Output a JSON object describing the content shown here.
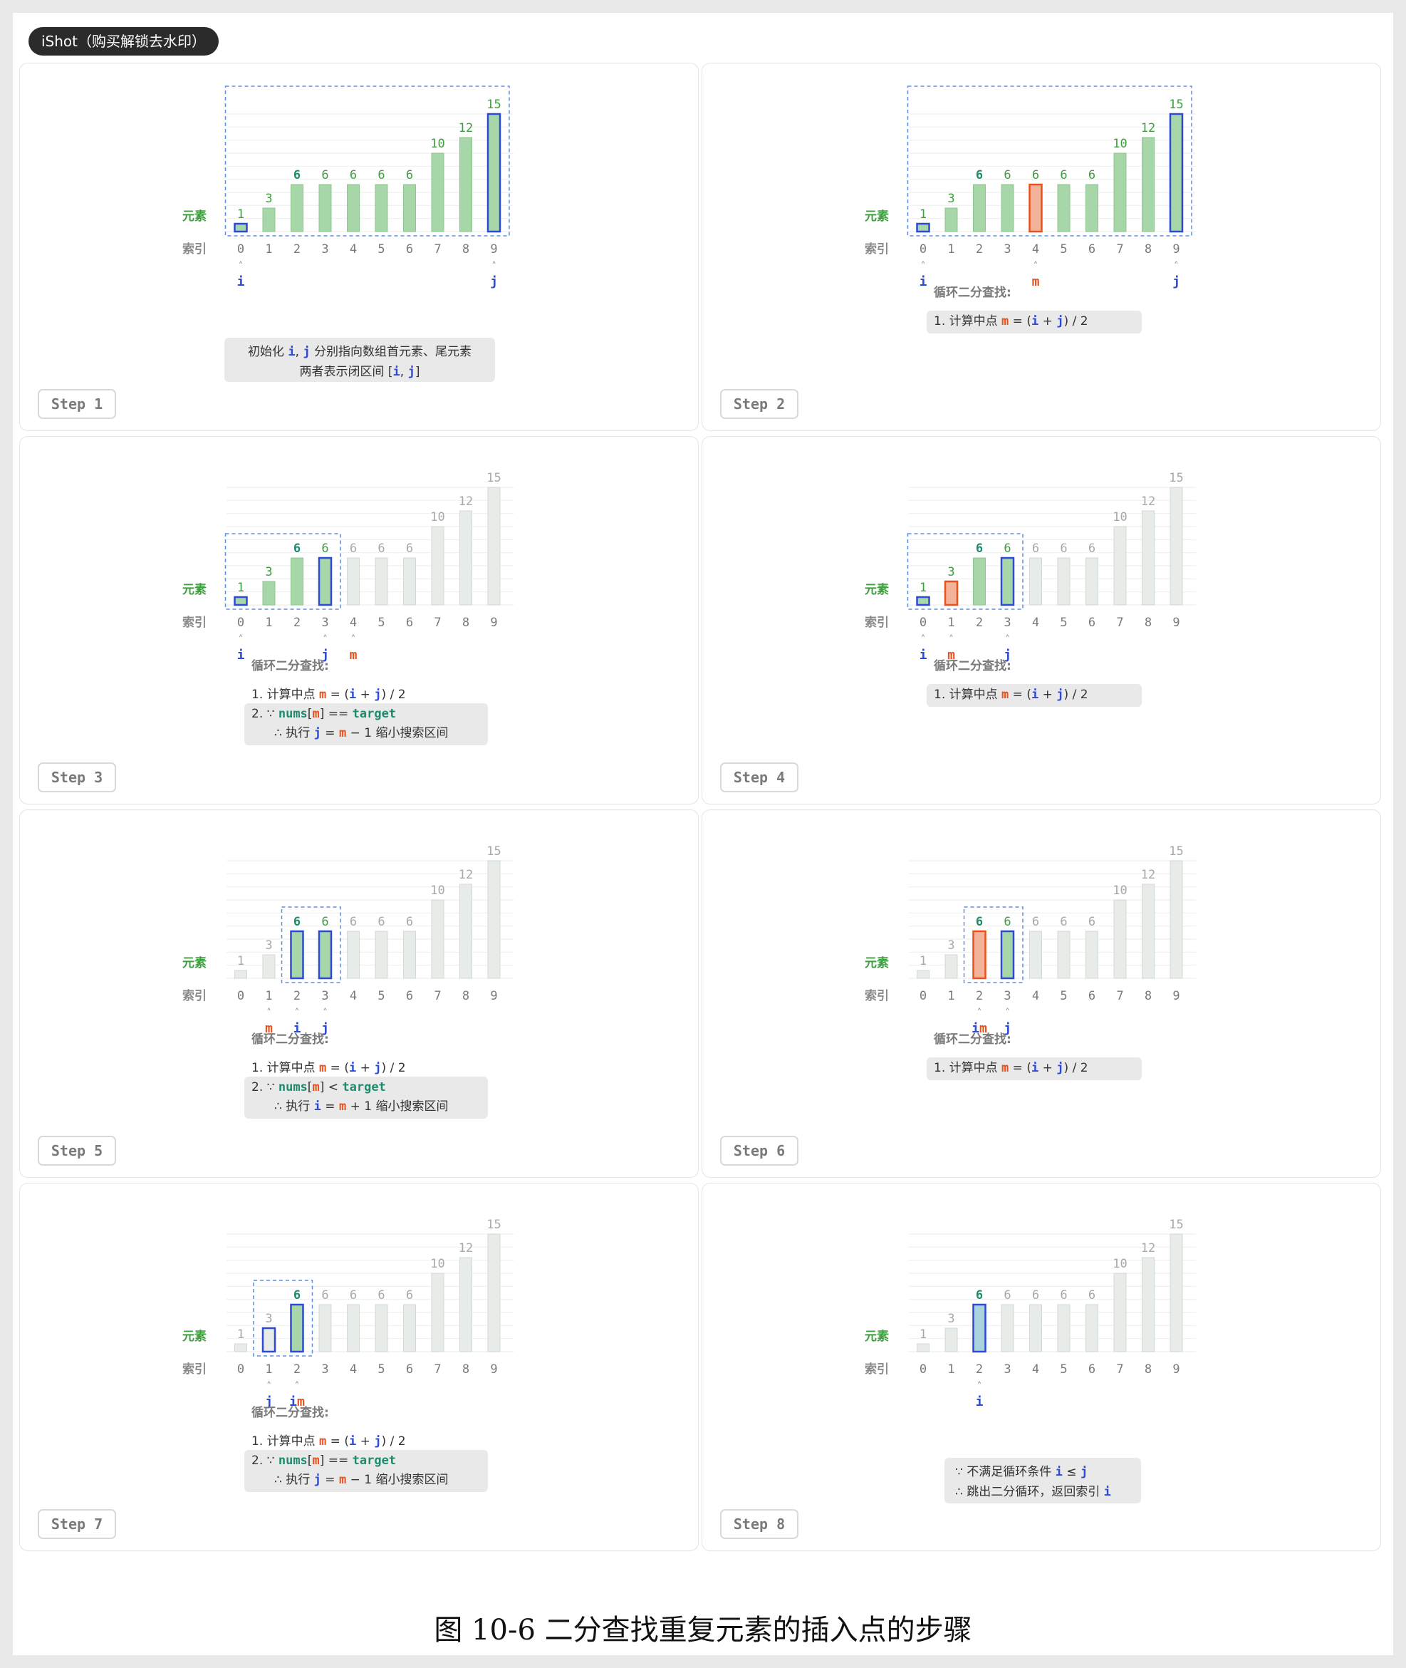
{
  "watermark": "iShot（购买解锁去水印）",
  "figure_caption": "图 10-6   二分查找重复元素的插入点的步骤",
  "labels": {
    "element": "元素",
    "index": "索引"
  },
  "colors": {
    "green_fill": "#a7d7a9",
    "green_stroke": "#8cc58f",
    "gray_fill": "#e8ece8",
    "gray_stroke": "#d3d9d3",
    "blue": "#2d4ad6",
    "blue_fill": "#a9d4dd",
    "orange": "#e8501c",
    "teal_text": "#1e8a6e",
    "green_text": "#3f9e3f",
    "gray_text": "#a8a8a8",
    "dashed": "#5b8fe0",
    "box_bg": "#e9e9e9"
  },
  "values": [
    1,
    3,
    6,
    6,
    6,
    6,
    6,
    10,
    12,
    15
  ],
  "indices": [
    "0",
    "1",
    "2",
    "3",
    "4",
    "5",
    "6",
    "7",
    "8",
    "9"
  ],
  "steps": [
    {
      "label": "Step 1",
      "range": [
        0,
        9
      ],
      "dashed": [
        0,
        9
      ],
      "highlights": {
        "0": "i",
        "9": "j"
      },
      "pointers": [
        {
          "index": 0,
          "vars": [
            "i"
          ]
        },
        {
          "index": 9,
          "vars": [
            "j"
          ]
        }
      ],
      "bold_values": [
        2
      ],
      "text": {
        "style": "box_center",
        "lines": [
          [
            [
              "初始化 ",
              "plain"
            ],
            [
              "i",
              "i"
            ],
            [
              ", ",
              "plain"
            ],
            [
              "j",
              "j"
            ],
            [
              " 分别指向数组首元素、尾元素",
              "plain"
            ]
          ],
          [
            [
              "两者表示闭区间 [",
              "plain"
            ],
            [
              "i",
              "i"
            ],
            [
              ", ",
              "plain"
            ],
            [
              "j",
              "j"
            ],
            [
              "]",
              "plain"
            ]
          ]
        ]
      }
    },
    {
      "label": "Step 2",
      "range": [
        0,
        9
      ],
      "dashed": [
        0,
        9
      ],
      "highlights": {
        "0": "i",
        "4": "m",
        "9": "j"
      },
      "pointers": [
        {
          "index": 0,
          "vars": [
            "i"
          ]
        },
        {
          "index": 4,
          "vars": [
            "m"
          ]
        },
        {
          "index": 9,
          "vars": [
            "j"
          ]
        }
      ],
      "bold_values": [
        2
      ],
      "text": {
        "style": "loop",
        "title": "循环二分查找:",
        "lines": [
          {
            "boxed": true,
            "segs": [
              [
                "1. 计算中点 ",
                "plain"
              ],
              [
                "m",
                "m"
              ],
              [
                " = (",
                "plain"
              ],
              [
                "i",
                "i"
              ],
              [
                " + ",
                "plain"
              ],
              [
                "j",
                "j"
              ],
              [
                ") / 2",
                "plain"
              ]
            ]
          }
        ]
      }
    },
    {
      "label": "Step 3",
      "range": [
        0,
        3
      ],
      "dashed": [
        0,
        3
      ],
      "highlights": {
        "0": "i",
        "3": "j"
      },
      "pointers": [
        {
          "index": 0,
          "vars": [
            "i"
          ]
        },
        {
          "index": 3,
          "vars": [
            "j"
          ]
        },
        {
          "index": 4,
          "vars": [
            "m"
          ]
        }
      ],
      "bold_values": [
        2
      ],
      "text": {
        "style": "loop",
        "title": "循环二分查找:",
        "lines": [
          {
            "boxed": false,
            "segs": [
              [
                "1. 计算中点 ",
                "plain"
              ],
              [
                "m",
                "m"
              ],
              [
                " = (",
                "plain"
              ],
              [
                "i",
                "i"
              ],
              [
                " + ",
                "plain"
              ],
              [
                "j",
                "j"
              ],
              [
                ") / 2",
                "plain"
              ]
            ]
          },
          {
            "boxed": true,
            "segs": [
              [
                "2. ∵ ",
                "plain"
              ],
              [
                "nums",
                "code"
              ],
              [
                "[",
                "plain"
              ],
              [
                "m",
                "m"
              ],
              [
                "] == ",
                "plain"
              ],
              [
                "target",
                "code"
              ]
            ]
          },
          {
            "boxed": true,
            "indent": true,
            "segs": [
              [
                "∴ 执行 ",
                "plain"
              ],
              [
                "j",
                "j"
              ],
              [
                " = ",
                "plain"
              ],
              [
                "m",
                "m"
              ],
              [
                " − 1 缩小搜索区间",
                "plain"
              ]
            ]
          }
        ]
      }
    },
    {
      "label": "Step 4",
      "range": [
        0,
        3
      ],
      "dashed": [
        0,
        3
      ],
      "highlights": {
        "0": "i",
        "1": "m",
        "3": "j"
      },
      "pointers": [
        {
          "index": 0,
          "vars": [
            "i"
          ]
        },
        {
          "index": 1,
          "vars": [
            "m"
          ]
        },
        {
          "index": 3,
          "vars": [
            "j"
          ]
        }
      ],
      "bold_values": [
        2
      ],
      "text": {
        "style": "loop",
        "title": "循环二分查找:",
        "lines": [
          {
            "boxed": true,
            "segs": [
              [
                "1. 计算中点 ",
                "plain"
              ],
              [
                "m",
                "m"
              ],
              [
                " = (",
                "plain"
              ],
              [
                "i",
                "i"
              ],
              [
                " + ",
                "plain"
              ],
              [
                "j",
                "j"
              ],
              [
                ") / 2",
                "plain"
              ]
            ]
          }
        ]
      }
    },
    {
      "label": "Step 5",
      "range": [
        2,
        3
      ],
      "dashed": [
        2,
        3
      ],
      "highlights": {
        "2": "i",
        "3": "j"
      },
      "pointers": [
        {
          "index": 1,
          "vars": [
            "m"
          ]
        },
        {
          "index": 2,
          "vars": [
            "i"
          ]
        },
        {
          "index": 3,
          "vars": [
            "j"
          ]
        }
      ],
      "bold_values": [
        2
      ],
      "text": {
        "style": "loop",
        "title": "循环二分查找:",
        "lines": [
          {
            "boxed": false,
            "segs": [
              [
                "1. 计算中点 ",
                "plain"
              ],
              [
                "m",
                "m"
              ],
              [
                " = (",
                "plain"
              ],
              [
                "i",
                "i"
              ],
              [
                " + ",
                "plain"
              ],
              [
                "j",
                "j"
              ],
              [
                ") / 2",
                "plain"
              ]
            ]
          },
          {
            "boxed": true,
            "segs": [
              [
                "2. ∵ ",
                "plain"
              ],
              [
                "nums",
                "code"
              ],
              [
                "[",
                "plain"
              ],
              [
                "m",
                "m"
              ],
              [
                "] < ",
                "plain"
              ],
              [
                "target",
                "code"
              ]
            ]
          },
          {
            "boxed": true,
            "indent": true,
            "segs": [
              [
                "∴ 执行 ",
                "plain"
              ],
              [
                "i",
                "i"
              ],
              [
                " = ",
                "plain"
              ],
              [
                "m",
                "m"
              ],
              [
                " + 1 缩小搜索区间",
                "plain"
              ]
            ]
          }
        ]
      }
    },
    {
      "label": "Step 6",
      "range": [
        2,
        3
      ],
      "dashed": [
        2,
        3
      ],
      "highlights": {
        "2": "m",
        "3": "j"
      },
      "pointers": [
        {
          "index": 2,
          "vars": [
            "i",
            "m"
          ]
        },
        {
          "index": 3,
          "vars": [
            "j"
          ]
        }
      ],
      "bold_values": [
        2
      ],
      "text": {
        "style": "loop",
        "title": "循环二分查找:",
        "lines": [
          {
            "boxed": true,
            "segs": [
              [
                "1. 计算中点 ",
                "plain"
              ],
              [
                "m",
                "m"
              ],
              [
                " = (",
                "plain"
              ],
              [
                "i",
                "i"
              ],
              [
                " + ",
                "plain"
              ],
              [
                "j",
                "j"
              ],
              [
                ") / 2",
                "plain"
              ]
            ]
          }
        ]
      }
    },
    {
      "label": "Step 7",
      "range": [
        2,
        2
      ],
      "dashed": [
        1,
        2
      ],
      "highlights": {
        "1": "j",
        "2": "i"
      },
      "pointers": [
        {
          "index": 1,
          "vars": [
            "j"
          ]
        },
        {
          "index": 2,
          "vars": [
            "i",
            "m"
          ]
        }
      ],
      "bold_values": [
        2
      ],
      "text": {
        "style": "loop",
        "title": "循环二分查找:",
        "lines": [
          {
            "boxed": false,
            "segs": [
              [
                "1. 计算中点 ",
                "plain"
              ],
              [
                "m",
                "m"
              ],
              [
                " = (",
                "plain"
              ],
              [
                "i",
                "i"
              ],
              [
                " + ",
                "plain"
              ],
              [
                "j",
                "j"
              ],
              [
                ") / 2",
                "plain"
              ]
            ]
          },
          {
            "boxed": true,
            "segs": [
              [
                "2. ∵ ",
                "plain"
              ],
              [
                "nums",
                "code"
              ],
              [
                "[",
                "plain"
              ],
              [
                "m",
                "m"
              ],
              [
                "] == ",
                "plain"
              ],
              [
                "target",
                "code"
              ]
            ]
          },
          {
            "boxed": true,
            "indent": true,
            "segs": [
              [
                "∴ 执行 ",
                "plain"
              ],
              [
                "j",
                "j"
              ],
              [
                " = ",
                "plain"
              ],
              [
                "m",
                "m"
              ],
              [
                " − 1 缩小搜索区间",
                "plain"
              ]
            ]
          }
        ]
      }
    },
    {
      "label": "Step 8",
      "range": null,
      "dashed": null,
      "highlights": {
        "2": "i"
      },
      "pointers": [
        {
          "index": 2,
          "vars": [
            "i"
          ]
        }
      ],
      "bold_values": [
        2
      ],
      "text": {
        "style": "box_end",
        "lines": [
          [
            [
              "∵ 不满足循环条件 ",
              "plain"
            ],
            [
              "i",
              "i"
            ],
            [
              " ≤ ",
              "plain"
            ],
            [
              "j",
              "j"
            ]
          ],
          [
            [
              "∴ 跳出二分循环，返回索引 ",
              "plain"
            ],
            [
              "i",
              "i"
            ]
          ]
        ]
      }
    }
  ]
}
